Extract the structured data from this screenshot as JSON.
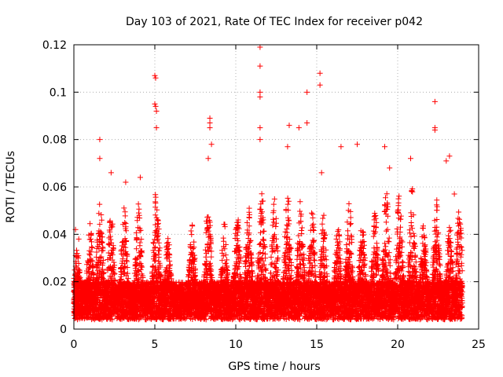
{
  "chart_data": {
    "type": "scatter",
    "title": "Day 103 of 2021, Rate Of TEC Index for receiver p042",
    "xlabel": "GPS time / hours",
    "ylabel": "ROTI / TECUs",
    "xlim": [
      0,
      25
    ],
    "ylim": [
      0,
      0.12
    ],
    "xticks": [
      0,
      5,
      10,
      15,
      20,
      25
    ],
    "yticks": [
      0,
      0.02,
      0.04,
      0.06,
      0.08,
      0.1,
      0.12
    ],
    "xtick_labels": [
      "0",
      "5",
      "10",
      "15",
      "20",
      "25"
    ],
    "ytick_labels": [
      "0",
      "0.02",
      "0.04",
      "0.06",
      "0.08",
      "0.1",
      "0.12"
    ],
    "grid": true,
    "marker": "+",
    "color": "#ff0000",
    "series": [
      {
        "name": "ROTI",
        "x_range": [
          0,
          24
        ],
        "sample_interval_hours": 0.0083,
        "baseline_range": [
          0.004,
          0.02
        ],
        "points": [
          [
            0.1,
            0.042
          ],
          [
            0.3,
            0.038
          ],
          [
            1.6,
            0.08
          ],
          [
            1.6,
            0.072
          ],
          [
            2.3,
            0.066
          ],
          [
            3.2,
            0.062
          ],
          [
            4.1,
            0.064
          ],
          [
            5.0,
            0.107
          ],
          [
            5.05,
            0.106
          ],
          [
            5.0,
            0.095
          ],
          [
            5.05,
            0.094
          ],
          [
            5.1,
            0.092
          ],
          [
            5.1,
            0.085
          ],
          [
            8.4,
            0.089
          ],
          [
            8.4,
            0.087
          ],
          [
            8.4,
            0.085
          ],
          [
            8.5,
            0.078
          ],
          [
            8.3,
            0.072
          ],
          [
            11.5,
            0.119
          ],
          [
            11.5,
            0.111
          ],
          [
            11.5,
            0.1
          ],
          [
            11.5,
            0.098
          ],
          [
            11.5,
            0.085
          ],
          [
            11.5,
            0.08
          ],
          [
            13.3,
            0.086
          ],
          [
            13.2,
            0.077
          ],
          [
            13.9,
            0.085
          ],
          [
            14.4,
            0.1
          ],
          [
            14.4,
            0.087
          ],
          [
            15.2,
            0.108
          ],
          [
            15.2,
            0.103
          ],
          [
            15.3,
            0.066
          ],
          [
            16.5,
            0.077
          ],
          [
            17.5,
            0.078
          ],
          [
            19.2,
            0.077
          ],
          [
            19.5,
            0.068
          ],
          [
            20.8,
            0.072
          ],
          [
            22.3,
            0.096
          ],
          [
            22.3,
            0.085
          ],
          [
            22.3,
            0.084
          ],
          [
            23.0,
            0.071
          ],
          [
            23.2,
            0.073
          ],
          [
            23.5,
            0.057
          ]
        ]
      }
    ]
  }
}
